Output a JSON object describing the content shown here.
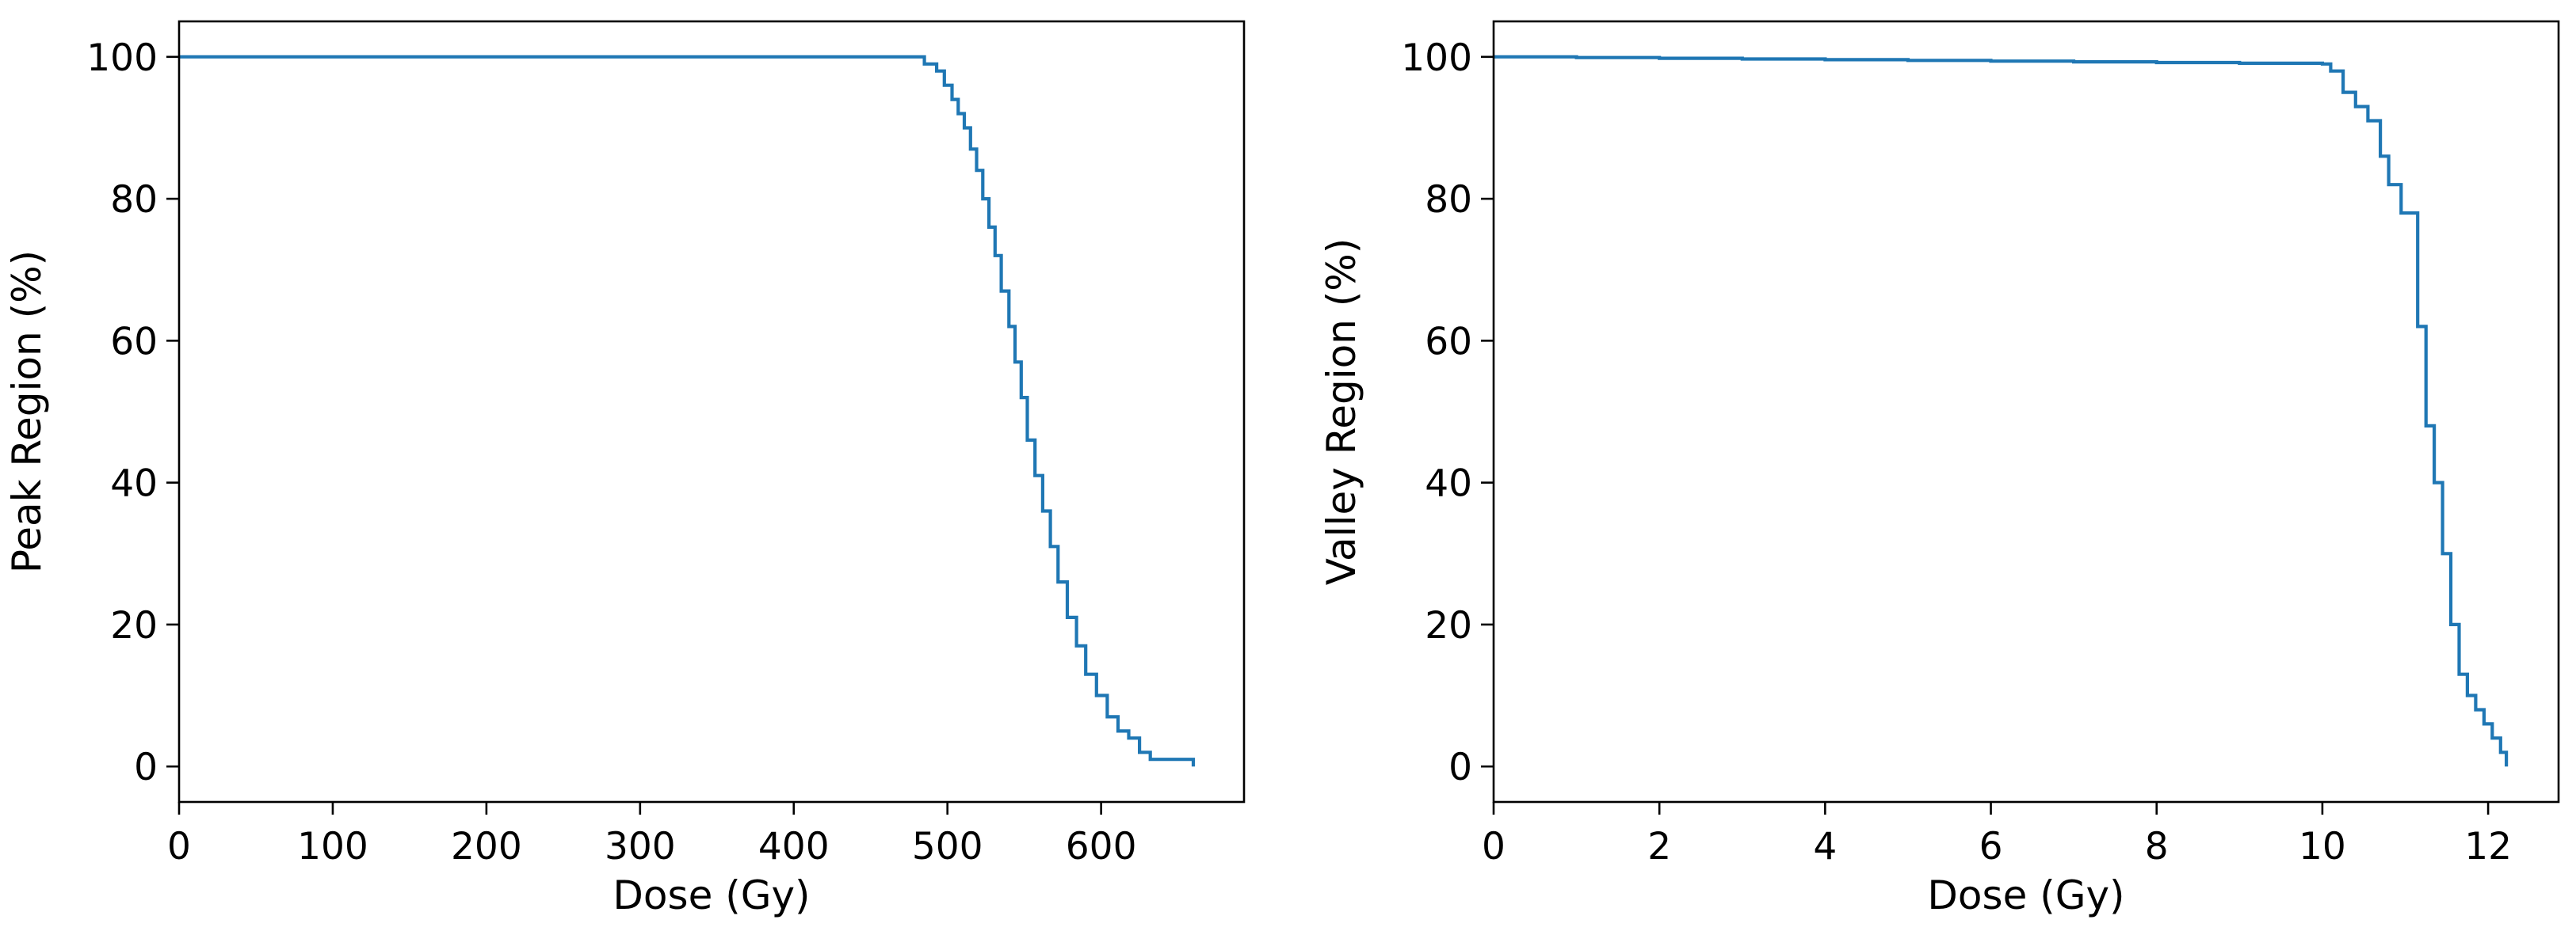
{
  "chart_data": [
    {
      "type": "line",
      "title": "",
      "xlabel": "Dose (Gy)",
      "ylabel": "Peak Region (%)",
      "xlim": [
        0,
        693
      ],
      "ylim": [
        -5,
        105
      ],
      "xticks": [
        0,
        100,
        200,
        300,
        400,
        500,
        600
      ],
      "yticks": [
        0,
        20,
        40,
        60,
        80,
        100
      ],
      "grid": false,
      "series": [
        {
          "color": "#1f77b4",
          "step": true,
          "x": [
            0,
            485,
            485,
            493,
            498,
            503,
            507,
            511,
            515,
            519,
            523,
            527,
            531,
            535,
            540,
            544,
            548,
            552,
            557,
            562,
            567,
            572,
            578,
            584,
            590,
            597,
            604,
            611,
            618,
            625,
            632,
            660,
            660
          ],
          "y": [
            100,
            100,
            99,
            98,
            96,
            94,
            92,
            90,
            87,
            84,
            80,
            76,
            72,
            67,
            62,
            57,
            52,
            46,
            41,
            36,
            31,
            26,
            21,
            17,
            13,
            10,
            7,
            5,
            4,
            2,
            1,
            1,
            0
          ]
        }
      ]
    },
    {
      "type": "line",
      "title": "",
      "xlabel": "Dose (Gy)",
      "ylabel": "Valley Region (%)",
      "xlim": [
        0,
        12.85
      ],
      "ylim": [
        -5,
        105
      ],
      "xticks": [
        0,
        2,
        4,
        6,
        8,
        10,
        12
      ],
      "yticks": [
        0,
        20,
        40,
        60,
        80,
        100
      ],
      "grid": false,
      "series": [
        {
          "color": "#1f77b4",
          "step": true,
          "x": [
            0,
            1,
            2,
            3,
            4,
            5,
            6,
            7,
            8,
            9,
            10,
            10.1,
            10.25,
            10.4,
            10.55,
            10.7,
            10.8,
            10.95,
            11.15,
            11.25,
            11.35,
            11.45,
            11.55,
            11.65,
            11.75,
            11.85,
            11.95,
            12.05,
            12.15,
            12.22,
            12.22
          ],
          "y": [
            100,
            99.9,
            99.8,
            99.7,
            99.6,
            99.5,
            99.4,
            99.3,
            99.2,
            99.1,
            99,
            98,
            95,
            93,
            91,
            86,
            82,
            78,
            62,
            48,
            40,
            30,
            20,
            13,
            10,
            8,
            6,
            4,
            2,
            1,
            0
          ]
        }
      ]
    }
  ]
}
